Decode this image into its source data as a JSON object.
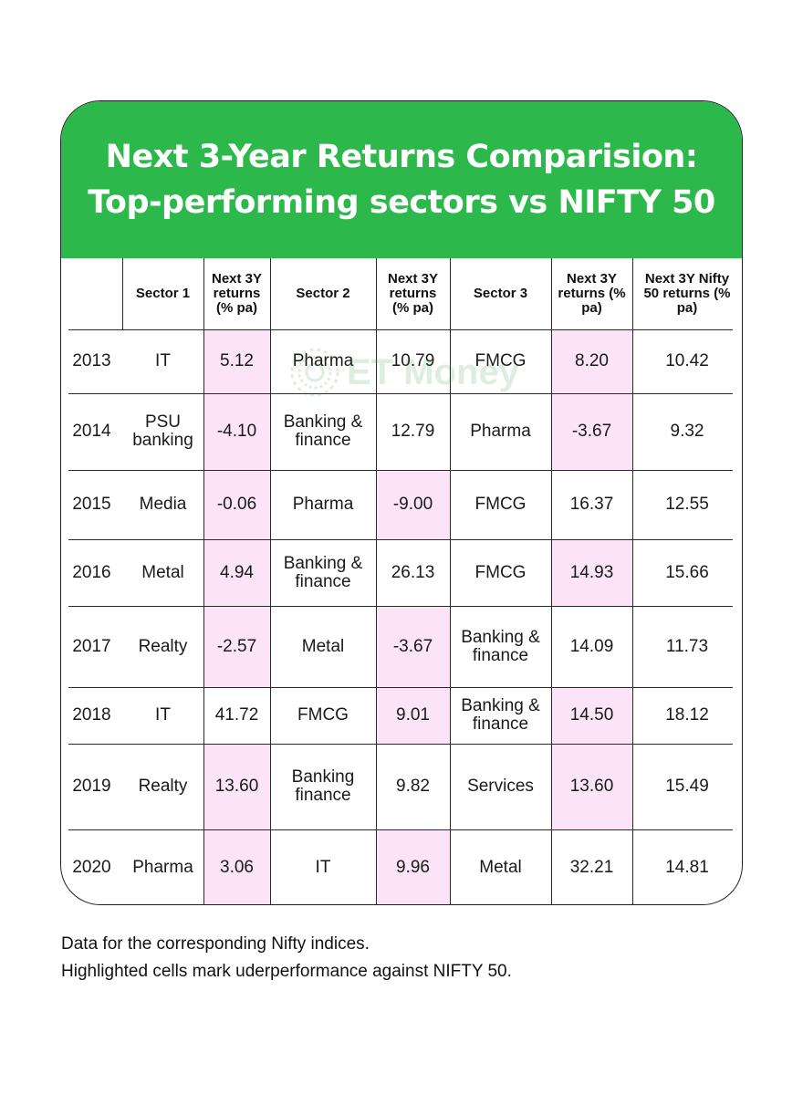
{
  "title": {
    "line1": "Next 3-Year Returns Comparision:",
    "line2": "Top-performing sectors vs NIFTY 50"
  },
  "watermark": "ET Money",
  "colors": {
    "header_bg": "#2db84b",
    "highlight": "#fbe3f8",
    "text": "#1a1a1a"
  },
  "chart_data": {
    "type": "table",
    "title": "Next 3-Year Returns Comparision: Top-performing sectors vs NIFTY 50",
    "columns": [
      "",
      "Sector 1",
      "Next 3Y returns (% pa)",
      "Sector 2",
      "Next 3Y returns (% pa)",
      "Sector 3",
      "Next 3Y returns (% pa)",
      "Next 3Y Nifty 50 returns (% pa)"
    ],
    "rows": [
      {
        "year": "2013",
        "sector1": "IT",
        "ret1": "5.12",
        "sector2": "Pharma",
        "ret2": "10.79",
        "sector3": "FMCG",
        "ret3": "8.20",
        "nifty": "10.42"
      },
      {
        "year": "2014",
        "sector1": "PSU banking",
        "ret1": "-4.10",
        "sector2": "Banking & finance",
        "ret2": "12.79",
        "sector3": "Pharma",
        "ret3": "-3.67",
        "nifty": "9.32"
      },
      {
        "year": "2015",
        "sector1": "Media",
        "ret1": "-0.06",
        "sector2": "Pharma",
        "ret2": "-9.00",
        "sector3": "FMCG",
        "ret3": "16.37",
        "nifty": "12.55"
      },
      {
        "year": "2016",
        "sector1": "Metal",
        "ret1": "4.94",
        "sector2": "Banking & finance",
        "ret2": "26.13",
        "sector3": "FMCG",
        "ret3": "14.93",
        "nifty": "15.66"
      },
      {
        "year": "2017",
        "sector1": "Realty",
        "ret1": "-2.57",
        "sector2": "Metal",
        "ret2": "-3.67",
        "sector3": "Banking & finance",
        "ret3": "14.09",
        "nifty": "11.73"
      },
      {
        "year": "2018",
        "sector1": "IT",
        "ret1": "41.72",
        "sector2": "FMCG",
        "ret2": "9.01",
        "sector3": "Banking & finance",
        "ret3": "14.50",
        "nifty": "18.12"
      },
      {
        "year": "2019",
        "sector1": "Realty",
        "ret1": "13.60",
        "sector2": "Banking finance",
        "ret2": "9.82",
        "sector3": "Services",
        "ret3": "13.60",
        "nifty": "15.49"
      },
      {
        "year": "2020",
        "sector1": "Pharma",
        "ret1": "3.06",
        "sector2": "IT",
        "ret2": "9.96",
        "sector3": "Metal",
        "ret3": "32.21",
        "nifty": "14.81"
      }
    ],
    "highlighted_cells": [
      {
        "year": "2013",
        "column": "ret1"
      },
      {
        "year": "2013",
        "column": "ret3"
      },
      {
        "year": "2014",
        "column": "ret1"
      },
      {
        "year": "2014",
        "column": "ret3"
      },
      {
        "year": "2015",
        "column": "ret1"
      },
      {
        "year": "2015",
        "column": "ret2"
      },
      {
        "year": "2016",
        "column": "ret1"
      },
      {
        "year": "2016",
        "column": "ret3"
      },
      {
        "year": "2017",
        "column": "ret1"
      },
      {
        "year": "2017",
        "column": "ret2"
      },
      {
        "year": "2018",
        "column": "ret2"
      },
      {
        "year": "2018",
        "column": "ret3"
      },
      {
        "year": "2019",
        "column": "ret1"
      },
      {
        "year": "2019",
        "column": "ret3"
      },
      {
        "year": "2020",
        "column": "ret1"
      },
      {
        "year": "2020",
        "column": "ret2"
      }
    ]
  },
  "footnote": {
    "line1": "Data for the corresponding Nifty indices.",
    "line2": "Highlighted cells mark uderperformance against NIFTY 50."
  }
}
